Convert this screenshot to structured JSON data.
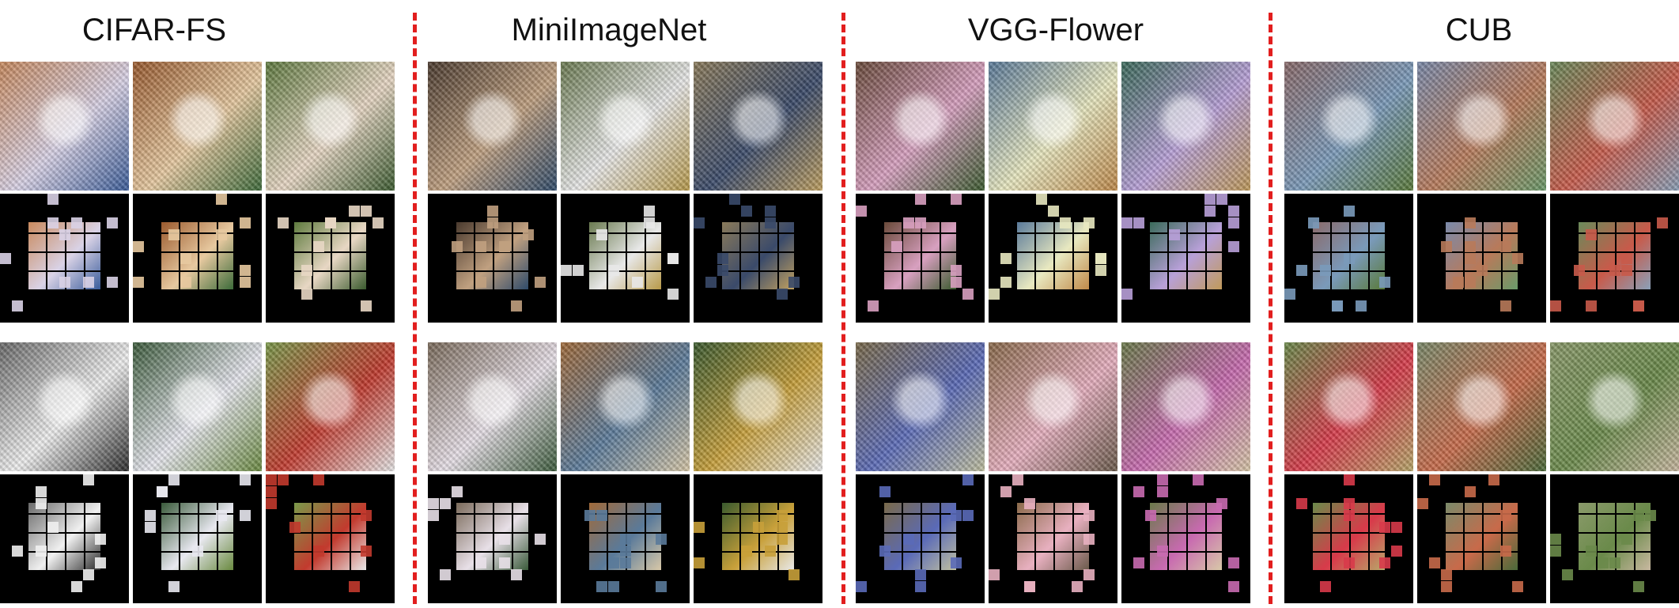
{
  "columns": [
    {
      "title": "CIFAR-FS"
    },
    {
      "title": "MiniImageNet"
    },
    {
      "title": "VGG-Flower"
    },
    {
      "title": "CUB"
    }
  ],
  "palette": [
    [
      [
        "#c98a5e",
        "#d9d2e6",
        "#3a5c9a"
      ],
      [
        "#9a5a2e",
        "#e7c9a0",
        "#3d6b3a"
      ],
      [
        "#5e7a3e",
        "#e8d7c4",
        "#3a5a2e"
      ],
      [
        "#6a6a6a",
        "#f0f0f0",
        "#2b2b2b"
      ],
      [
        "#3a5a3a",
        "#e8e8f0",
        "#6a8a40"
      ],
      [
        "#7a9a4a",
        "#c23a2e",
        "#e8e8e8"
      ]
    ],
    [
      [
        "#4a3a2e",
        "#c0a080",
        "#2e4a6a"
      ],
      [
        "#6a7a50",
        "#e8e8e8",
        "#b89a4a"
      ],
      [
        "#8a7a5a",
        "#3a4a6a",
        "#c0a060"
      ],
      [
        "#7a6a5a",
        "#e8e0e8",
        "#3a5a3a"
      ],
      [
        "#a06a3a",
        "#5a7a9a",
        "#d8c8a8"
      ],
      [
        "#3a5a2e",
        "#c8a03a",
        "#e8e8e8"
      ]
    ],
    [
      [
        "#6a4a3a",
        "#d8a0c0",
        "#3a5a2e"
      ],
      [
        "#5a7a9a",
        "#e8e8c0",
        "#c08a4a"
      ],
      [
        "#3a6a5a",
        "#b8a0d8",
        "#c09a5a"
      ],
      [
        "#7a6a4a",
        "#5a6ab8",
        "#c0c0a0"
      ],
      [
        "#8a6a4a",
        "#e8b0c0",
        "#6a5a4a"
      ],
      [
        "#6a7a4a",
        "#c86ab0",
        "#d8c8a8"
      ]
    ],
    [
      [
        "#8a6a6a",
        "#7a9aba",
        "#5a7a3a"
      ],
      [
        "#7a8aaa",
        "#b87a5a",
        "#6a9a6a"
      ],
      [
        "#6a8a5a",
        "#c85a4a",
        "#8aa0b8"
      ],
      [
        "#6a8a4a",
        "#d83a4a",
        "#b8a86a"
      ],
      [
        "#7a8a6a",
        "#c86a4a",
        "#4a6a3a"
      ],
      [
        "#8a9a6a",
        "#6a8a4a",
        "#c8b8a0"
      ]
    ]
  ]
}
